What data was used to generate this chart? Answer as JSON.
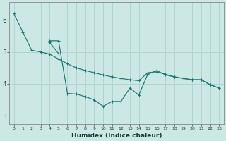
{
  "xlabel": "Humidex (Indice chaleur)",
  "background_color": "#cce8e5",
  "grid_color": "#b0d5d0",
  "line_color": "#1a7a6e",
  "xlim": [
    -0.5,
    23.5
  ],
  "ylim": [
    2.75,
    6.55
  ],
  "yticks": [
    3,
    4,
    5,
    6
  ],
  "xtick_labels": [
    "0",
    "1",
    "2",
    "3",
    "4",
    "5",
    "6",
    "7",
    "8",
    "9",
    "10",
    "11",
    "12",
    "13",
    "14",
    "15",
    "16",
    "17",
    "18",
    "19",
    "20",
    "21",
    "22",
    "23"
  ],
  "series": [
    {
      "x": [
        0,
        1,
        2,
        3,
        4,
        5,
        6,
        7,
        8,
        9,
        10,
        11,
        12,
        13,
        14,
        15,
        16,
        17,
        18,
        19,
        20,
        21,
        22,
        23
      ],
      "y": [
        6.2,
        5.62,
        5.05,
        5.0,
        4.93,
        4.78,
        4.63,
        4.5,
        4.42,
        4.35,
        4.28,
        4.22,
        4.17,
        4.13,
        4.1,
        4.35,
        4.38,
        4.3,
        4.22,
        4.17,
        4.13,
        4.13,
        3.97,
        3.87
      ]
    },
    {
      "x": [
        4,
        5,
        6,
        7,
        8,
        9,
        10,
        11,
        12,
        13,
        14,
        15,
        16,
        17,
        18,
        19,
        20,
        21,
        22,
        23
      ],
      "y": [
        5.35,
        5.35,
        3.7,
        3.68,
        3.6,
        3.5,
        3.3,
        3.45,
        3.45,
        3.87,
        3.65,
        4.3,
        4.42,
        4.28,
        4.22,
        4.17,
        4.13,
        4.13,
        3.97,
        3.87
      ]
    },
    {
      "x": [
        4,
        5
      ],
      "y": [
        5.3,
        4.95
      ]
    }
  ]
}
